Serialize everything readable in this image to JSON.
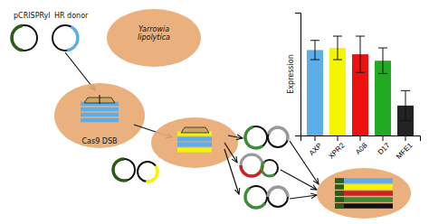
{
  "chart_data": {
    "type": "bar",
    "ylabel": "Expression",
    "categories": [
      "AXP",
      "XPR2",
      "A08",
      "D17",
      "MFE1"
    ],
    "values": [
      0.8,
      0.82,
      0.76,
      0.7,
      0.28
    ],
    "errors": [
      0.09,
      0.11,
      0.17,
      0.12,
      0.14
    ],
    "colors": [
      "#5baee8",
      "#f5f500",
      "#ee1111",
      "#22aa22",
      "#222222"
    ],
    "ylim": [
      0,
      1.15
    ],
    "yticks": [],
    "tick_labels": "x",
    "annotations": [
      "pCRISPRyl",
      "HR donor",
      "Yarrowia\nlipolytica",
      "Cas9 DSB"
    ]
  }
}
